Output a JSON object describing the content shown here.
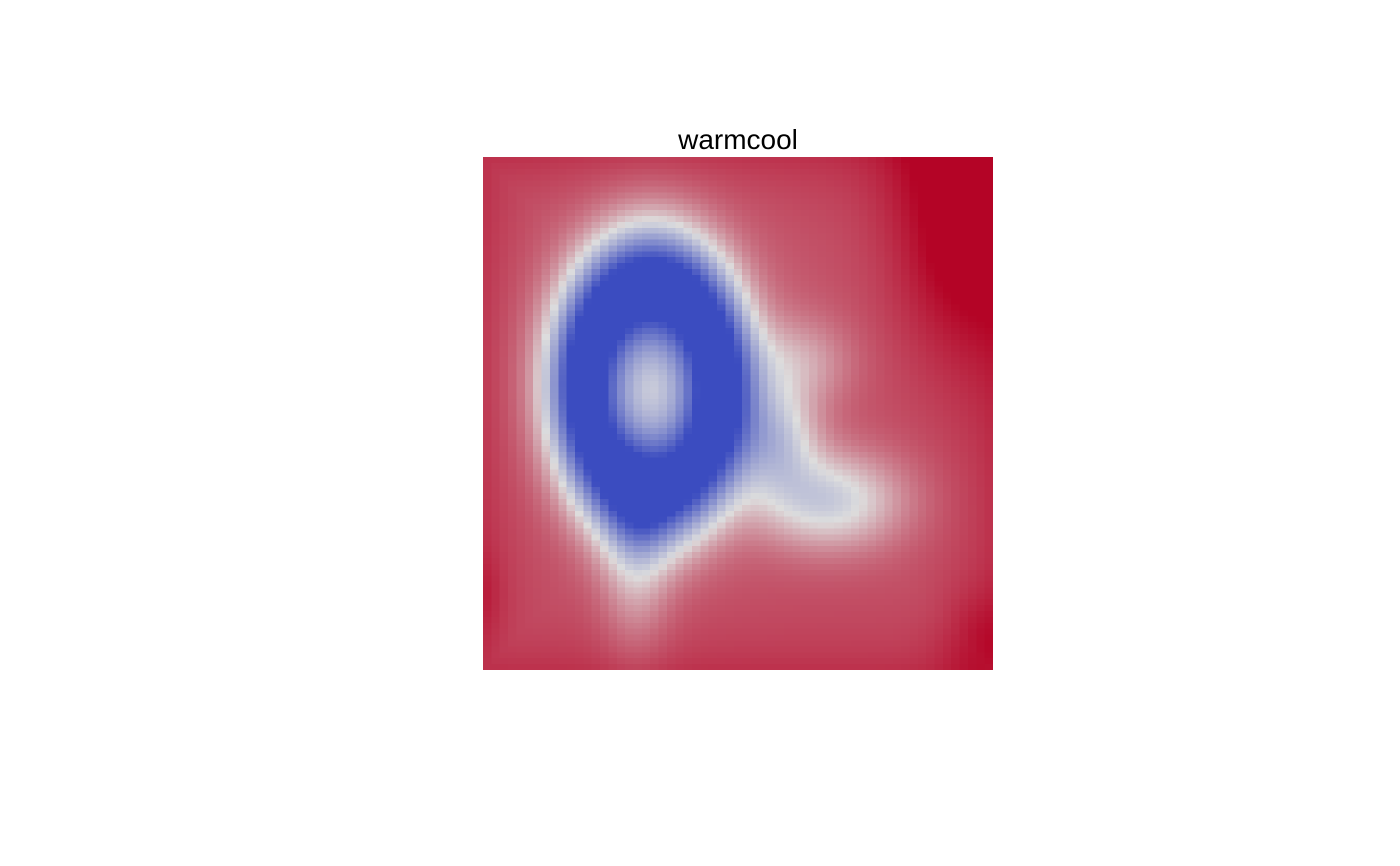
{
  "chart_data": {
    "type": "heatmap",
    "title": "warmcool",
    "xlabel": "",
    "ylabel": "",
    "axes_shown": false,
    "grid": false,
    "legend": "none",
    "colormap": {
      "name": "warmcool",
      "low": "#3b4cc0",
      "mid": "#dddddd",
      "high": "#b40426"
    },
    "value_range": [
      0,
      1
    ],
    "grid_size": [
      61,
      87
    ],
    "surface": {
      "base": 0.82,
      "features": [
        {
          "kind": "ring",
          "cx": 0.33,
          "cy": 0.45,
          "rx": 0.135,
          "ry": 0.205,
          "ring_width": 0.075,
          "depth": -0.78
        },
        {
          "kind": "blob",
          "cx": 0.33,
          "cy": 0.42,
          "rx": 0.23,
          "ry": 0.3,
          "depth": -0.35
        },
        {
          "kind": "blob",
          "cx": 0.3,
          "cy": 0.78,
          "rx": 0.08,
          "ry": 0.2,
          "depth": -0.22
        },
        {
          "kind": "blob",
          "cx": 0.58,
          "cy": 0.55,
          "rx": 0.09,
          "ry": 0.12,
          "depth": -0.32
        },
        {
          "kind": "blob",
          "cx": 0.68,
          "cy": 0.67,
          "rx": 0.17,
          "ry": 0.11,
          "depth": -0.38
        },
        {
          "kind": "blob",
          "cx": 0.62,
          "cy": 0.4,
          "rx": 0.12,
          "ry": 0.1,
          "depth": -0.18
        },
        {
          "kind": "blob",
          "cx": 0.95,
          "cy": 0.1,
          "rx": 0.17,
          "ry": 0.32,
          "depth": 0.24
        },
        {
          "kind": "blob",
          "cx": 0.98,
          "cy": 0.95,
          "rx": 0.1,
          "ry": 0.12,
          "depth": 0.1
        },
        {
          "kind": "blob",
          "cx": 0.0,
          "cy": 0.85,
          "rx": 0.05,
          "ry": 0.1,
          "depth": 0.05
        }
      ]
    }
  }
}
